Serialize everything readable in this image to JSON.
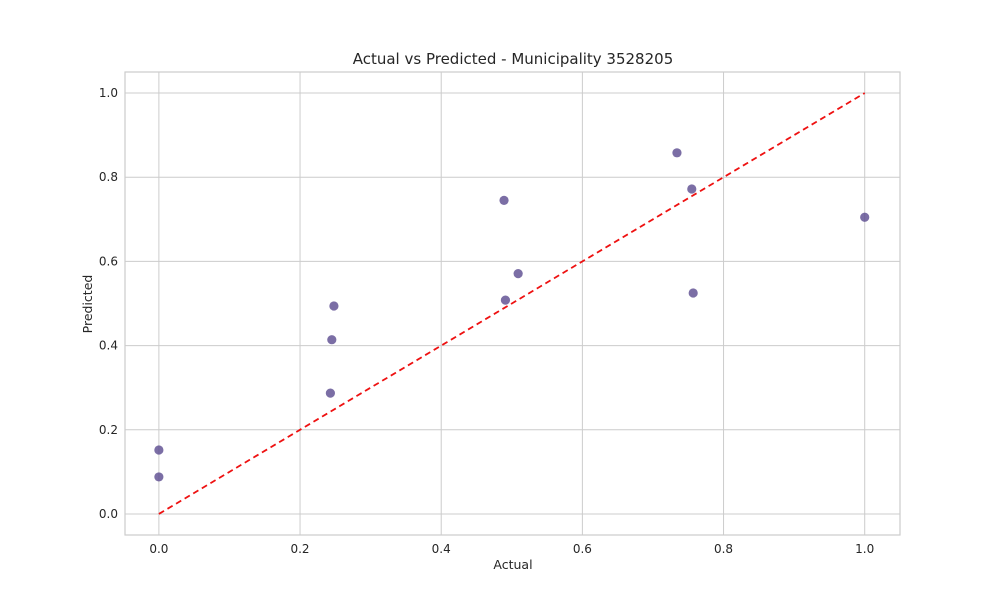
{
  "chart_data": {
    "type": "scatter",
    "title": "Actual vs Predicted - Municipality 3528205",
    "xlabel": "Actual",
    "ylabel": "Predicted",
    "xlim": [
      -0.048,
      1.05
    ],
    "ylim": [
      -0.05,
      1.05
    ],
    "xticks": [
      0.0,
      0.2,
      0.4,
      0.6,
      0.8,
      1.0
    ],
    "yticks": [
      0.0,
      0.2,
      0.4,
      0.6,
      0.8,
      1.0
    ],
    "xtick_labels": [
      "0.0",
      "0.2",
      "0.4",
      "0.6",
      "0.8",
      "1.0"
    ],
    "ytick_labels": [
      "0.0",
      "0.2",
      "0.4",
      "0.6",
      "0.8",
      "1.0"
    ],
    "grid": true,
    "points": [
      {
        "x": 0.0,
        "y": 0.152
      },
      {
        "x": 0.0,
        "y": 0.088
      },
      {
        "x": 0.243,
        "y": 0.287
      },
      {
        "x": 0.245,
        "y": 0.414
      },
      {
        "x": 0.248,
        "y": 0.494
      },
      {
        "x": 0.489,
        "y": 0.745
      },
      {
        "x": 0.491,
        "y": 0.508
      },
      {
        "x": 0.509,
        "y": 0.571
      },
      {
        "x": 0.734,
        "y": 0.858
      },
      {
        "x": 0.755,
        "y": 0.772
      },
      {
        "x": 0.757,
        "y": 0.525
      },
      {
        "x": 1.0,
        "y": 0.705
      }
    ],
    "reference_line": {
      "x": [
        0.0,
        1.0
      ],
      "y": [
        0.0,
        1.0
      ]
    },
    "colors": {
      "point": "#5a4a8f",
      "reference_line": "#ee1111"
    }
  }
}
